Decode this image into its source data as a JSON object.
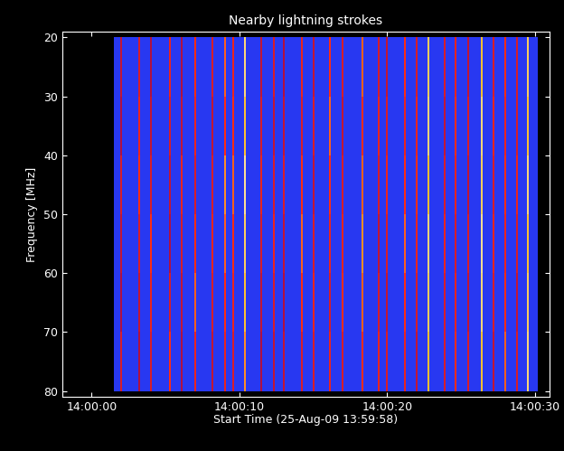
{
  "chart_data": {
    "type": "spectrogram",
    "title": "Nearby lightning strokes",
    "x_label": "Start Time (25-Aug-09 13:59:58)",
    "y_label": "Frequency [MHz]",
    "xlim": [
      0,
      33
    ],
    "xticks": [
      {
        "value": 2,
        "label": "14:00:00"
      },
      {
        "value": 12,
        "label": "14:00:10"
      },
      {
        "value": 22,
        "label": "14:00:20"
      },
      {
        "value": 32,
        "label": "14:00:30"
      }
    ],
    "ylim": [
      81,
      19
    ],
    "yticks": [
      20,
      30,
      40,
      50,
      60,
      70,
      80
    ],
    "color_range": [
      0,
      1
    ],
    "time_range": [
      3.5,
      32.2
    ],
    "freq_edges": [
      20,
      30,
      40,
      50,
      60,
      70,
      80
    ],
    "background": 0.3,
    "strikes": [
      {
        "t": 4.0,
        "values": [
          0.55,
          0.5,
          0.6,
          0.55,
          0.5,
          0.6
        ]
      },
      {
        "t": 5.2,
        "values": [
          0.6,
          0.65,
          0.7,
          0.6,
          0.55,
          0.5
        ]
      },
      {
        "t": 6.0,
        "values": [
          0.5,
          0.55,
          0.6,
          0.7,
          0.65,
          0.6
        ]
      },
      {
        "t": 7.3,
        "values": [
          0.65,
          0.6,
          0.55,
          0.5,
          0.6,
          0.7
        ]
      },
      {
        "t": 8.1,
        "values": [
          0.5,
          0.55,
          0.65,
          0.6,
          0.55,
          0.5
        ]
      },
      {
        "t": 9.0,
        "values": [
          0.7,
          0.65,
          0.6,
          0.7,
          0.75,
          0.65
        ]
      },
      {
        "t": 10.2,
        "values": [
          0.6,
          0.55,
          0.6,
          0.65,
          0.6,
          0.55
        ]
      },
      {
        "t": 11.0,
        "values": [
          0.75,
          0.7,
          0.8,
          0.75,
          0.7,
          0.65
        ]
      },
      {
        "t": 11.6,
        "values": [
          0.65,
          0.7,
          0.75,
          0.7,
          0.65,
          0.6
        ]
      },
      {
        "t": 12.4,
        "values": [
          0.9,
          0.85,
          0.92,
          0.88,
          0.85,
          0.8
        ]
      },
      {
        "t": 13.5,
        "values": [
          0.55,
          0.6,
          0.65,
          0.6,
          0.55,
          0.5
        ]
      },
      {
        "t": 14.3,
        "values": [
          0.6,
          0.55,
          0.6,
          0.65,
          0.6,
          0.55
        ]
      },
      {
        "t": 15.0,
        "values": [
          0.5,
          0.55,
          0.6,
          0.55,
          0.5,
          0.55
        ]
      },
      {
        "t": 16.2,
        "values": [
          0.65,
          0.6,
          0.7,
          0.75,
          0.7,
          0.6
        ]
      },
      {
        "t": 17.0,
        "values": [
          0.55,
          0.6,
          0.55,
          0.6,
          0.65,
          0.6
        ]
      },
      {
        "t": 18.1,
        "values": [
          0.7,
          0.75,
          0.7,
          0.65,
          0.6,
          0.65
        ]
      },
      {
        "t": 19.0,
        "values": [
          0.6,
          0.55,
          0.6,
          0.65,
          0.7,
          0.6
        ]
      },
      {
        "t": 20.3,
        "values": [
          0.75,
          0.7,
          0.75,
          0.8,
          0.75,
          0.7
        ]
      },
      {
        "t": 21.4,
        "values": [
          0.6,
          0.65,
          0.6,
          0.55,
          0.6,
          0.65
        ]
      },
      {
        "t": 22.0,
        "values": [
          0.55,
          0.6,
          0.65,
          0.6,
          0.55,
          0.6
        ]
      },
      {
        "t": 23.2,
        "values": [
          0.7,
          0.65,
          0.7,
          0.75,
          0.7,
          0.65
        ]
      },
      {
        "t": 24.0,
        "values": [
          0.6,
          0.65,
          0.7,
          0.65,
          0.6,
          0.55
        ]
      },
      {
        "t": 24.8,
        "values": [
          0.88,
          0.9,
          0.85,
          0.9,
          0.88,
          0.85
        ]
      },
      {
        "t": 25.9,
        "values": [
          0.6,
          0.55,
          0.6,
          0.65,
          0.6,
          0.6
        ]
      },
      {
        "t": 26.6,
        "values": [
          0.65,
          0.7,
          0.65,
          0.6,
          0.65,
          0.7
        ]
      },
      {
        "t": 27.5,
        "values": [
          0.55,
          0.6,
          0.55,
          0.6,
          0.55,
          0.6
        ]
      },
      {
        "t": 28.4,
        "values": [
          0.85,
          0.9,
          0.88,
          0.92,
          0.9,
          0.85
        ]
      },
      {
        "t": 29.2,
        "values": [
          0.6,
          0.65,
          0.6,
          0.65,
          0.6,
          0.55
        ]
      },
      {
        "t": 30.0,
        "values": [
          0.7,
          0.65,
          0.7,
          0.65,
          0.7,
          0.75
        ]
      },
      {
        "t": 30.8,
        "values": [
          0.6,
          0.6,
          0.65,
          0.6,
          0.55,
          0.6
        ]
      },
      {
        "t": 31.5,
        "values": [
          0.88,
          0.85,
          0.9,
          0.85,
          0.88,
          0.9
        ]
      }
    ]
  }
}
